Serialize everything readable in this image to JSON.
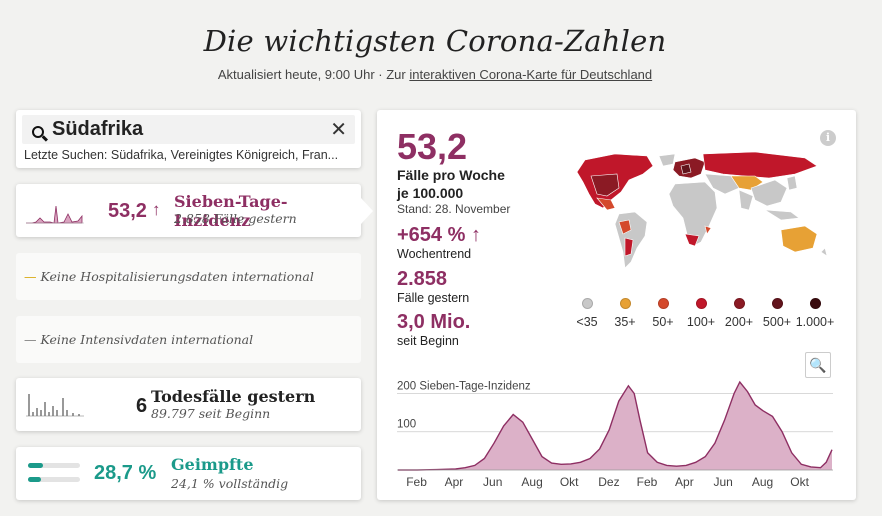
{
  "header": {
    "title": "Die wichtigsten Corona-Zahlen",
    "updated": "Aktualisiert heute, 9:00 Uhr · Zur ",
    "map_link": "interaktiven Corona-Karte für Deutschland"
  },
  "search": {
    "query": "Südafrika",
    "recent": "Letzte Suchen: Südafrika, Vereinigtes Königreich, Fran..."
  },
  "incidence_row": {
    "value": "53,2",
    "arrow": "↑",
    "label": "Sieben-Tage-Inzidenz",
    "sub": "2.858 Fälle gestern",
    "color": "#8e2f63"
  },
  "hospital": {
    "dash": "—",
    "text": "Keine Hospitalisierungsdaten international"
  },
  "icu": {
    "dash": "—",
    "text": "Keine Intensivdaten international"
  },
  "deaths": {
    "value": "6",
    "label": "Todesfälle gestern",
    "sub": "89.797 seit Beginn"
  },
  "vaccinated": {
    "value": "28,7 %",
    "label": "Geimpfte",
    "sub": "24,1 % vollständig",
    "first_dose": 0.287,
    "full": 0.241,
    "color": "#1b9a8a"
  },
  "main": {
    "value": "53,2",
    "unit_line1": "Fälle pro Woche",
    "unit_line2": "je 100.000",
    "stand": "Stand: 28. November",
    "trend": "+654 %",
    "trend_arrow": "↑",
    "trend_label": "Wochentrend",
    "gestern": "2.858",
    "gestern_label": "Fälle gestern",
    "total": "3,0 Mio.",
    "total_label": "seit Beginn",
    "info_icon": "i",
    "zoom_icon": "🔍"
  },
  "legend": [
    {
      "label": "<35",
      "color": "#c8c8c8"
    },
    {
      "label": "35+",
      "color": "#e7a135"
    },
    {
      "label": "50+",
      "color": "#d4492c"
    },
    {
      "label": "100+",
      "color": "#c0172a"
    },
    {
      "label": "200+",
      "color": "#8b1a24"
    },
    {
      "label": "500+",
      "color": "#62141c"
    },
    {
      "label": "1.000+",
      "color": "#3a0b0e"
    }
  ],
  "chart_data": {
    "type": "area",
    "title": "",
    "ylabel": "Sieben-Tage-Inzidenz",
    "ylim": [
      0,
      230
    ],
    "y_gridlines": [
      100,
      200
    ],
    "y_gridline_labels": [
      "100",
      "200 Sieben-Tage-Inzidenz"
    ],
    "x_tick_labels": [
      "Feb",
      "Apr",
      "Jun",
      "Aug",
      "Okt",
      "Dez",
      "Feb",
      "Apr",
      "Jun",
      "Aug",
      "Okt"
    ],
    "x_tick_positions": [
      1,
      3,
      5,
      7,
      9,
      11,
      13,
      15,
      17,
      19,
      21
    ],
    "x": [
      0,
      1,
      2,
      3,
      3.5,
      4,
      4.5,
      5,
      5.5,
      6,
      6.5,
      7,
      7.5,
      8,
      8.5,
      9,
      9.5,
      10,
      10.5,
      11,
      11.5,
      12,
      12.3,
      12.6,
      13,
      13.5,
      14,
      14.5,
      15,
      15.5,
      16,
      16.5,
      17,
      17.5,
      17.8,
      18.2,
      18.6,
      19,
      19.5,
      20,
      20.5,
      21,
      21.5,
      22,
      22.3,
      22.6
    ],
    "values": [
      0,
      0,
      1,
      3,
      6,
      12,
      30,
      70,
      115,
      145,
      125,
      80,
      35,
      18,
      15,
      16,
      20,
      30,
      55,
      105,
      180,
      220,
      200,
      130,
      45,
      20,
      12,
      10,
      12,
      20,
      35,
      70,
      130,
      200,
      230,
      205,
      170,
      155,
      140,
      100,
      45,
      15,
      8,
      6,
      20,
      53
    ]
  }
}
